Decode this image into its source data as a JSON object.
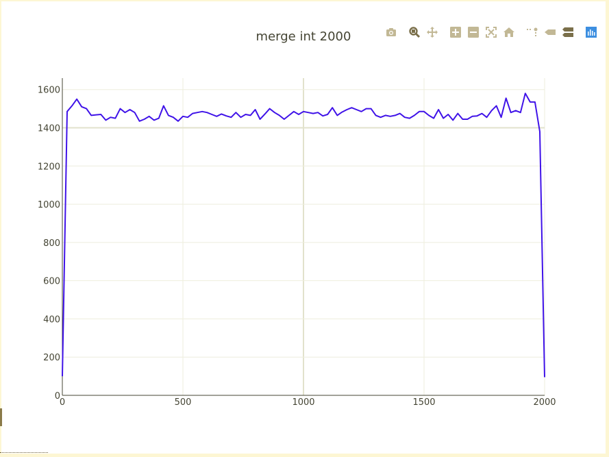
{
  "colors": {
    "line": "#3f12e8",
    "grid": "#eeeedd",
    "zeroline": "#e2e2cc",
    "text": "#444433",
    "modebar_icon": "#c2b895",
    "modebar_icon_dark": "#7a6f4a",
    "plotly_logo": "#3d8fe0"
  },
  "modebar": {
    "buttons": [
      {
        "name": "download-png",
        "icon": "camera-icon"
      },
      {
        "name": "zoom",
        "icon": "zoom-icon"
      },
      {
        "name": "pan",
        "icon": "pan-icon"
      },
      {
        "name": "zoom-in",
        "icon": "plus-box-icon"
      },
      {
        "name": "zoom-out",
        "icon": "minus-box-icon"
      },
      {
        "name": "autoscale",
        "icon": "autoscale-icon"
      },
      {
        "name": "reset-axes",
        "icon": "home-icon"
      },
      {
        "name": "spike-lines",
        "icon": "spikelines-icon"
      },
      {
        "name": "hover-closest",
        "icon": "hover-closest-icon"
      },
      {
        "name": "hover-compare",
        "icon": "hover-compare-icon"
      },
      {
        "name": "plotly-logo",
        "icon": "plotly-logo-icon"
      }
    ]
  },
  "chart_data": {
    "type": "line",
    "title": "merge int 2000",
    "xlabel": "",
    "ylabel": "",
    "xlim": [
      0,
      2000
    ],
    "ylim": [
      0,
      1660
    ],
    "xticks": [
      0,
      500,
      1000,
      1500,
      2000
    ],
    "yticks": [
      0,
      200,
      400,
      600,
      800,
      1000,
      1200,
      1400,
      1600
    ],
    "grid": true,
    "series": [
      {
        "x": [
          0,
          20,
          40,
          60,
          80,
          100,
          120,
          140,
          160,
          180,
          200,
          220,
          240,
          260,
          280,
          300,
          320,
          340,
          360,
          380,
          400,
          420,
          440,
          460,
          480,
          500,
          520,
          540,
          560,
          580,
          600,
          620,
          640,
          660,
          680,
          700,
          720,
          740,
          760,
          780,
          800,
          820,
          840,
          860,
          880,
          900,
          920,
          940,
          960,
          980,
          1000,
          1020,
          1040,
          1060,
          1080,
          1100,
          1120,
          1140,
          1160,
          1180,
          1200,
          1220,
          1240,
          1260,
          1280,
          1300,
          1320,
          1340,
          1360,
          1380,
          1400,
          1420,
          1440,
          1460,
          1480,
          1500,
          1520,
          1540,
          1560,
          1580,
          1600,
          1620,
          1640,
          1660,
          1680,
          1700,
          1720,
          1740,
          1760,
          1780,
          1800,
          1820,
          1840,
          1860,
          1880,
          1900,
          1920,
          1940,
          1960,
          1980,
          2000
        ],
        "y": [
          100,
          1485,
          1515,
          1550,
          1510,
          1500,
          1465,
          1468,
          1470,
          1440,
          1455,
          1450,
          1500,
          1480,
          1495,
          1480,
          1435,
          1445,
          1460,
          1440,
          1450,
          1515,
          1465,
          1455,
          1435,
          1460,
          1455,
          1475,
          1480,
          1485,
          1480,
          1470,
          1460,
          1472,
          1462,
          1455,
          1480,
          1455,
          1470,
          1465,
          1495,
          1445,
          1472,
          1500,
          1480,
          1465,
          1445,
          1465,
          1485,
          1470,
          1485,
          1480,
          1475,
          1480,
          1462,
          1470,
          1505,
          1465,
          1482,
          1495,
          1505,
          1495,
          1485,
          1500,
          1500,
          1465,
          1455,
          1465,
          1460,
          1465,
          1475,
          1455,
          1450,
          1465,
          1485,
          1485,
          1465,
          1450,
          1495,
          1450,
          1470,
          1440,
          1475,
          1445,
          1445,
          1460,
          1462,
          1475,
          1455,
          1490,
          1515,
          1455,
          1555,
          1480,
          1490,
          1480,
          1580,
          1535,
          1535,
          1380,
          95
        ]
      }
    ]
  }
}
